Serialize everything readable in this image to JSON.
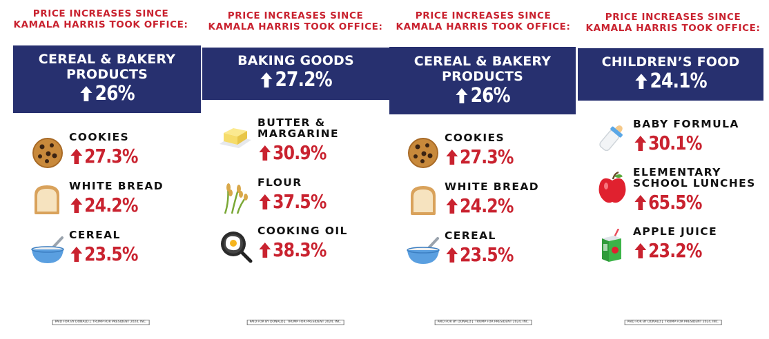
{
  "colors": {
    "accent_red": "#c9222f",
    "banner_blue": "#27306f"
  },
  "panels": [
    {
      "headline_line1": "PRICE INCREASES SINCE",
      "headline_line2": "KAMALA HARRIS TOOK OFFICE:",
      "category_line1": "CEREAL & BAKERY",
      "category_line2": "PRODUCTS",
      "category_value": "26%",
      "items": [
        {
          "icon": "cookie-icon",
          "label_line1": "COOKIES",
          "label_line2": "",
          "value": "27.3%"
        },
        {
          "icon": "bread-icon",
          "label_line1": "WHITE BREAD",
          "label_line2": "",
          "value": "24.2%"
        },
        {
          "icon": "cereal-bowl-icon",
          "label_line1": "CEREAL",
          "label_line2": "",
          "value": "23.5%"
        }
      ],
      "disclaimer": "PAID FOR BY DONALD J. TRUMP FOR PRESIDENT 2024, INC."
    },
    {
      "headline_line1": "PRICE INCREASES SINCE",
      "headline_line2": "KAMALA HARRIS TOOK OFFICE:",
      "category_line1": "BAKING GOODS",
      "category_line2": "",
      "category_value": "27.2%",
      "items": [
        {
          "icon": "butter-icon",
          "label_line1": "BUTTER &",
          "label_line2": "MARGARINE",
          "value": "30.9%"
        },
        {
          "icon": "wheat-icon",
          "label_line1": "FLOUR",
          "label_line2": "",
          "value": "37.5%"
        },
        {
          "icon": "frying-pan-icon",
          "label_line1": "COOKING OIL",
          "label_line2": "",
          "value": "38.3%"
        }
      ],
      "disclaimer": "PAID FOR BY DONALD J. TRUMP FOR PRESIDENT 2024, INC."
    },
    {
      "headline_line1": "PRICE INCREASES SINCE",
      "headline_line2": "KAMALA HARRIS TOOK OFFICE:",
      "category_line1": "CEREAL & BAKERY",
      "category_line2": "PRODUCTS",
      "category_value": "26%",
      "items": [
        {
          "icon": "cookie-icon",
          "label_line1": "COOKIES",
          "label_line2": "",
          "value": "27.3%"
        },
        {
          "icon": "bread-icon",
          "label_line1": "WHITE BREAD",
          "label_line2": "",
          "value": "24.2%"
        },
        {
          "icon": "cereal-bowl-icon",
          "label_line1": "CEREAL",
          "label_line2": "",
          "value": "23.5%"
        }
      ],
      "disclaimer": "PAID FOR BY DONALD J. TRUMP FOR PRESIDENT 2024, INC."
    },
    {
      "headline_line1": "PRICE INCREASES SINCE",
      "headline_line2": "KAMALA HARRIS TOOK OFFICE:",
      "category_line1": "CHILDREN’S FOOD",
      "category_line2": "",
      "category_value": "24.1%",
      "items": [
        {
          "icon": "baby-bottle-icon",
          "label_line1": "BABY FORMULA",
          "label_line2": "",
          "value": "30.1%"
        },
        {
          "icon": "apple-icon",
          "label_line1": "ELEMENTARY",
          "label_line2": "SCHOOL LUNCHES",
          "value": "65.5%"
        },
        {
          "icon": "juice-box-icon",
          "label_line1": "APPLE JUICE",
          "label_line2": "",
          "value": "23.2%"
        }
      ],
      "disclaimer": "PAID FOR BY DONALD J. TRUMP FOR PRESIDENT 2024, INC."
    }
  ]
}
